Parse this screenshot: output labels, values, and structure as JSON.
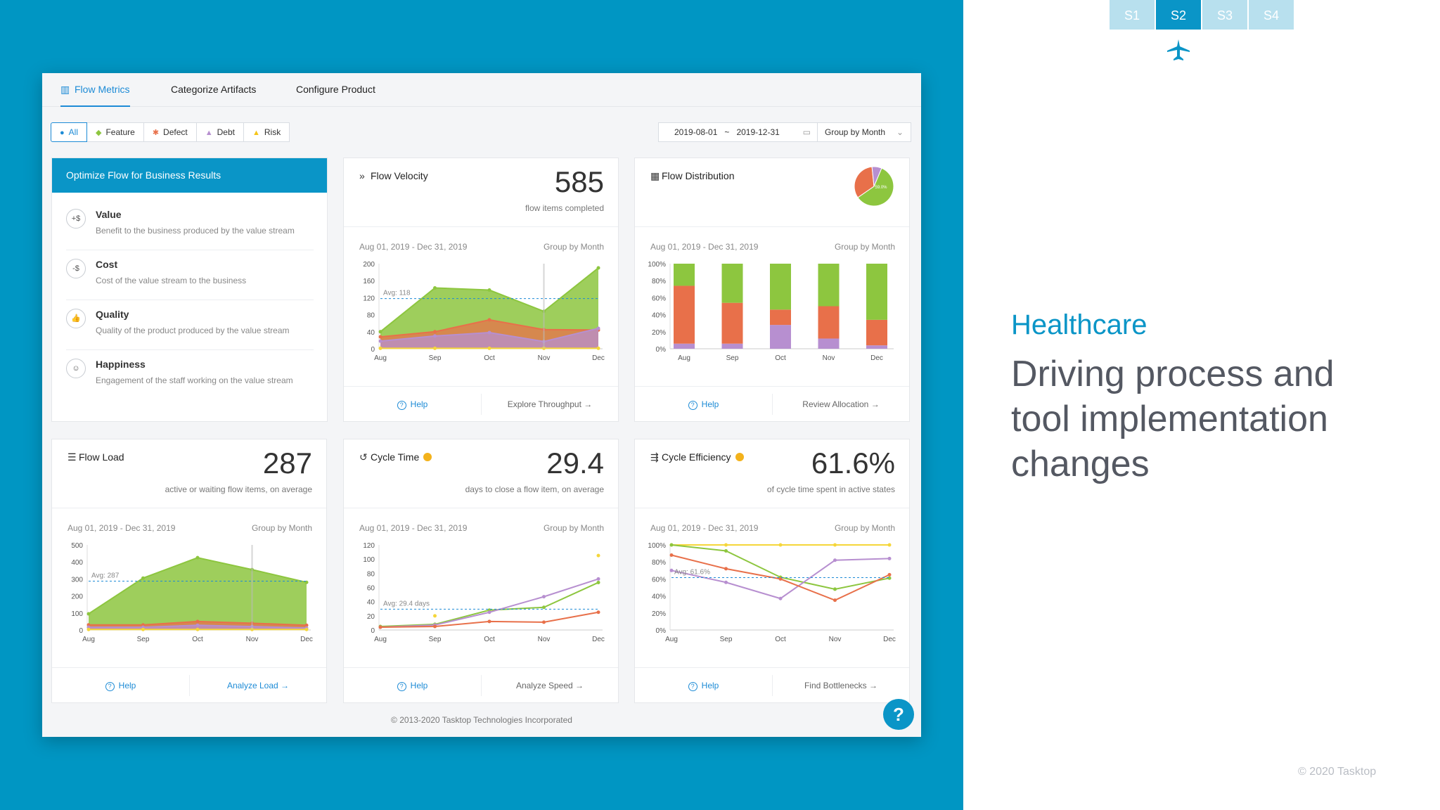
{
  "steps": [
    "S1",
    "S2",
    "S3",
    "S4"
  ],
  "tabs": [
    "Flow Metrics",
    "Categorize Artifacts",
    "Configure Product"
  ],
  "filters": [
    "All",
    "Feature",
    "Defect",
    "Debt",
    "Risk"
  ],
  "date_range": {
    "start": "2019-08-01",
    "sep": "~",
    "end": "2019-12-31"
  },
  "group_select": "Group by Month",
  "optimize": {
    "header": "Optimize Flow for Business Results",
    "items": [
      {
        "icon": "+$",
        "title": "Value",
        "desc": "Benefit to the business produced by the value stream"
      },
      {
        "icon": "-$",
        "title": "Cost",
        "desc": "Cost of the value stream to the business"
      },
      {
        "icon": "👍",
        "title": "Quality",
        "desc": "Quality of the product produced by the value stream"
      },
      {
        "icon": "☺",
        "title": "Happiness",
        "desc": "Engagement of the staff working on the value stream"
      }
    ]
  },
  "cards": {
    "velocity": {
      "title": "Flow Velocity",
      "value": "585",
      "sub": "flow items completed",
      "range": "Aug 01, 2019 - Dec 31, 2019",
      "group": "Group by Month",
      "help": "Help",
      "action": "Explore Throughput"
    },
    "distribution": {
      "title": "Flow Distribution",
      "range": "Aug 01, 2019 - Dec 31, 2019",
      "group": "Group by Month",
      "help": "Help",
      "action": "Review Allocation"
    },
    "load": {
      "title": "Flow Load",
      "value": "287",
      "sub": "active or waiting flow items, on average",
      "range": "Aug 01, 2019 - Dec 31, 2019",
      "group": "Group by Month",
      "help": "Help",
      "action": "Analyze Load"
    },
    "cycle_time": {
      "title": "Cycle Time",
      "value": "29.4",
      "sub": "days to close a flow item, on average",
      "range": "Aug 01, 2019 - Dec 31, 2019",
      "group": "Group by Month",
      "help": "Help",
      "action": "Analyze Speed"
    },
    "efficiency": {
      "title": "Cycle Efficiency",
      "value": "61.6%",
      "sub": "of cycle time spent in active states",
      "range": "Aug 01, 2019 - Dec 31, 2019",
      "group": "Group by Month",
      "help": "Help",
      "action": "Find Bottlenecks"
    }
  },
  "copyright": "© 2013-2020 Tasktop Technologies Incorporated",
  "help_bubble": "?",
  "right": {
    "section": "Healthcare",
    "headline": "Driving process and tool implementation changes",
    "copyright": "© 2020 Tasktop"
  },
  "colors": {
    "feature": "#8dc63f",
    "defect": "#e8704a",
    "debt": "#b78fd0",
    "risk": "#f5d63a",
    "accent": "#0a95c7"
  },
  "chart_data": [
    {
      "id": "velocity",
      "type": "area",
      "categories": [
        "Aug",
        "Sep",
        "Oct",
        "Nov",
        "Dec"
      ],
      "yticks": [
        "200",
        "160",
        "120",
        "80",
        "40",
        "0"
      ],
      "ylim": [
        0,
        200
      ],
      "avg_label": "Avg: 118",
      "avg": 118,
      "series": [
        {
          "values": [
            18,
            30,
            38,
            17,
            48
          ],
          "color": "#b78fd0"
        },
        {
          "values": [
            28,
            40,
            68,
            45,
            44
          ],
          "color": "#e8704a"
        },
        {
          "values": [
            40,
            143,
            138,
            88,
            190
          ],
          "color": "#8dc63f"
        },
        {
          "values": [
            1,
            1,
            1,
            1,
            1
          ],
          "color": "#f5d63a"
        }
      ]
    },
    {
      "id": "distribution",
      "type": "bar",
      "categories": [
        "Aug",
        "Sep",
        "Oct",
        "Nov",
        "Dec"
      ],
      "yticks": [
        "100%",
        "80%",
        "60%",
        "40%",
        "20%",
        "0%"
      ],
      "ylim": [
        0,
        100
      ],
      "series": [
        {
          "values": [
            6,
            6,
            28,
            12,
            4
          ],
          "color": "#b78fd0"
        },
        {
          "values": [
            68,
            48,
            18,
            38,
            30
          ],
          "color": "#e8704a"
        },
        {
          "values": [
            26,
            46,
            54,
            50,
            66
          ],
          "color": "#8dc63f"
        }
      ],
      "pie": [
        {
          "value": 59,
          "color": "#8dc63f"
        },
        {
          "value": 33,
          "color": "#e8704a"
        },
        {
          "value": 8,
          "color": "#b78fd0"
        }
      ],
      "pie_label": "59.0%"
    },
    {
      "id": "load",
      "type": "area",
      "categories": [
        "Aug",
        "Sep",
        "Oct",
        "Nov",
        "Dec"
      ],
      "yticks": [
        "500",
        "400",
        "300",
        "200",
        "100",
        "0"
      ],
      "ylim": [
        0,
        500
      ],
      "avg_label": "Avg: 287",
      "avg": 287,
      "series": [
        {
          "values": [
            16,
            16,
            28,
            20,
            12
          ],
          "color": "#b78fd0"
        },
        {
          "values": [
            30,
            30,
            50,
            40,
            28
          ],
          "color": "#e8704a"
        },
        {
          "values": [
            95,
            305,
            425,
            355,
            280
          ],
          "color": "#8dc63f"
        },
        {
          "values": [
            3,
            3,
            3,
            3,
            3
          ],
          "color": "#f5d63a"
        }
      ]
    },
    {
      "id": "cycle_time",
      "type": "line",
      "categories": [
        "Aug",
        "Sep",
        "Oct",
        "Nov",
        "Dec"
      ],
      "yticks": [
        "120",
        "100",
        "80",
        "60",
        "40",
        "20",
        "0"
      ],
      "ylim": [
        0,
        120
      ],
      "avg_label": "Avg: 29.4 days",
      "avg": 29.4,
      "series": [
        {
          "values": [
            5,
            8,
            28,
            32,
            67
          ],
          "color": "#8dc63f"
        },
        {
          "values": [
            4,
            7,
            25,
            47,
            72
          ],
          "color": "#b78fd0"
        },
        {
          "values": [
            4,
            5,
            12,
            11,
            25
          ],
          "color": "#e8704a"
        },
        {
          "values": [
            null,
            20,
            null,
            null,
            105
          ],
          "color": "#f5d63a"
        }
      ]
    },
    {
      "id": "efficiency",
      "type": "line",
      "categories": [
        "Aug",
        "Sep",
        "Oct",
        "Nov",
        "Dec"
      ],
      "yticks": [
        "100%",
        "80%",
        "60%",
        "40%",
        "20%",
        "0%"
      ],
      "ylim": [
        0,
        100
      ],
      "avg_label": "Avg: 61.6%",
      "avg": 61.6,
      "series": [
        {
          "values": [
            100,
            100,
            100,
            100,
            100
          ],
          "color": "#f5d63a"
        },
        {
          "values": [
            100,
            93,
            62,
            48,
            61
          ],
          "color": "#8dc63f"
        },
        {
          "values": [
            70,
            56,
            37,
            82,
            84
          ],
          "color": "#b78fd0"
        },
        {
          "values": [
            88,
            72,
            60,
            35,
            65
          ],
          "color": "#e8704a"
        }
      ]
    }
  ]
}
